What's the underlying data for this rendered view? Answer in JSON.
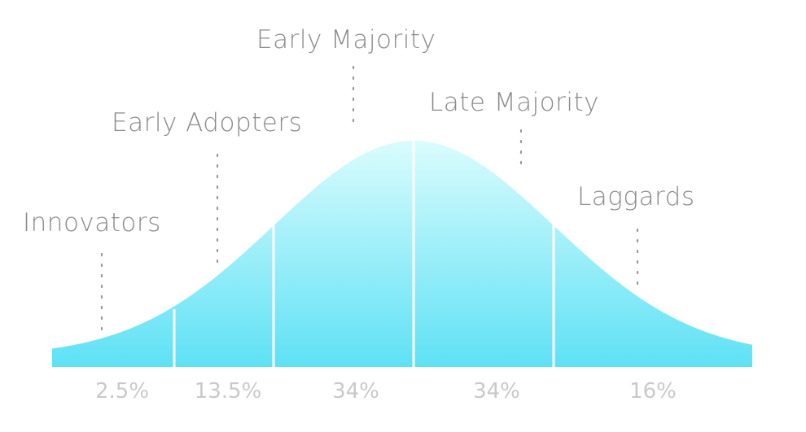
{
  "colors": {
    "curve_top": "#d9fcfd",
    "curve_bottom": "#5fe2f5",
    "label_text": "#8a8a8a",
    "percent_text": "#c9c9c9"
  },
  "segments": [
    {
      "label": "Innovators",
      "percent": "2.5%"
    },
    {
      "label": "Early Adopters",
      "percent": "13.5%"
    },
    {
      "label": "Early Majority",
      "percent": "34%"
    },
    {
      "label": "Late Majority",
      "percent": "34%"
    },
    {
      "label": "Laggards",
      "percent": "16%"
    }
  ]
}
